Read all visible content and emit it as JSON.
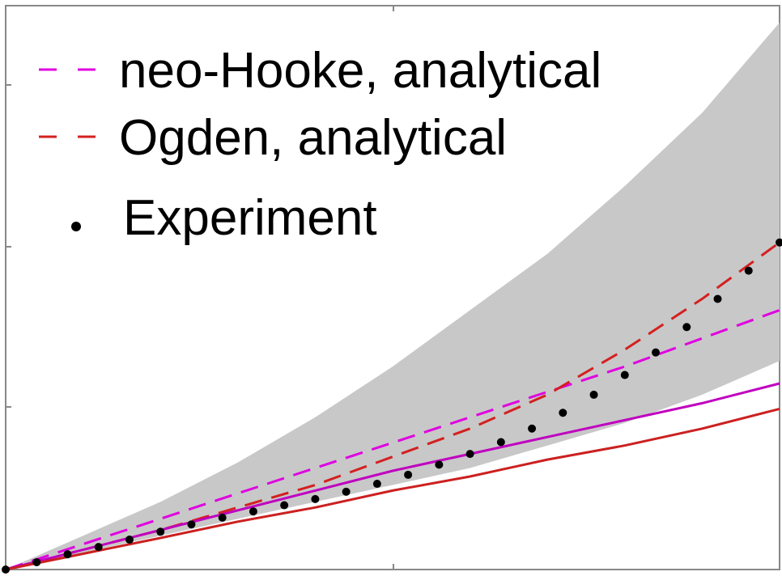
{
  "chart_data": {
    "type": "line",
    "title": "",
    "xlabel": "",
    "ylabel": "",
    "xlim": [
      0,
      1
    ],
    "ylim": [
      0,
      1
    ],
    "grid": false,
    "legend_position": "top-left",
    "legend": [
      {
        "label": "neo-Hooke, analytical",
        "color": "#e000e0",
        "style": "dashed"
      },
      {
        "label": "Ogden, analytical",
        "color": "#d42020",
        "style": "dashed"
      },
      {
        "label": "Experiment",
        "color": "#000000",
        "style": "dots"
      }
    ],
    "band": {
      "name": "",
      "color": "#c8c8c8",
      "x": [
        0,
        0.1,
        0.2,
        0.3,
        0.4,
        0.5,
        0.6,
        0.7,
        0.8,
        0.9,
        1.0
      ],
      "lower": [
        0,
        0.03,
        0.06,
        0.09,
        0.12,
        0.15,
        0.18,
        0.22,
        0.26,
        0.31,
        0.37
      ],
      "upper": [
        0,
        0.06,
        0.12,
        0.19,
        0.27,
        0.36,
        0.46,
        0.56,
        0.68,
        0.81,
        0.97
      ]
    },
    "series": [
      {
        "name": "neo-Hooke, analytical",
        "color": "#e000e0",
        "style": "dashed",
        "x": [
          0,
          0.1,
          0.2,
          0.3,
          0.4,
          0.5,
          0.6,
          0.7,
          0.8,
          0.9,
          1.0
        ],
        "y": [
          0,
          0.045,
          0.09,
          0.135,
          0.18,
          0.225,
          0.27,
          0.315,
          0.36,
          0.41,
          0.46
        ]
      },
      {
        "name": "Ogden, analytical",
        "color": "#d42020",
        "style": "dashed",
        "x": [
          0,
          0.1,
          0.2,
          0.3,
          0.4,
          0.5,
          0.6,
          0.7,
          0.8,
          0.9,
          1.0
        ],
        "y": [
          0,
          0.035,
          0.07,
          0.11,
          0.15,
          0.2,
          0.25,
          0.31,
          0.39,
          0.48,
          0.58
        ]
      },
      {
        "color": "#c000c0",
        "style": "solid",
        "x": [
          0,
          0.1,
          0.2,
          0.3,
          0.4,
          0.5,
          0.6,
          0.7,
          0.8,
          0.9,
          1.0
        ],
        "y": [
          0,
          0.035,
          0.07,
          0.105,
          0.14,
          0.175,
          0.205,
          0.235,
          0.265,
          0.295,
          0.33
        ]
      },
      {
        "color": "#cc2020",
        "style": "solid",
        "x": [
          0,
          0.1,
          0.2,
          0.3,
          0.4,
          0.5,
          0.6,
          0.7,
          0.8,
          0.9,
          1.0
        ],
        "y": [
          0,
          0.028,
          0.056,
          0.085,
          0.11,
          0.14,
          0.165,
          0.195,
          0.22,
          0.25,
          0.285
        ]
      },
      {
        "name": "Experiment",
        "color": "#000000",
        "style": "dots",
        "x": [
          0,
          0.04,
          0.08,
          0.12,
          0.16,
          0.2,
          0.24,
          0.28,
          0.32,
          0.36,
          0.4,
          0.44,
          0.48,
          0.52,
          0.56,
          0.6,
          0.64,
          0.68,
          0.72,
          0.76,
          0.8,
          0.84,
          0.88,
          0.92,
          0.96,
          1.0
        ],
        "y": [
          0,
          0.013,
          0.027,
          0.04,
          0.053,
          0.067,
          0.08,
          0.092,
          0.103,
          0.114,
          0.125,
          0.138,
          0.152,
          0.168,
          0.186,
          0.205,
          0.226,
          0.25,
          0.278,
          0.31,
          0.345,
          0.385,
          0.43,
          0.48,
          0.53,
          0.58
        ]
      }
    ]
  }
}
